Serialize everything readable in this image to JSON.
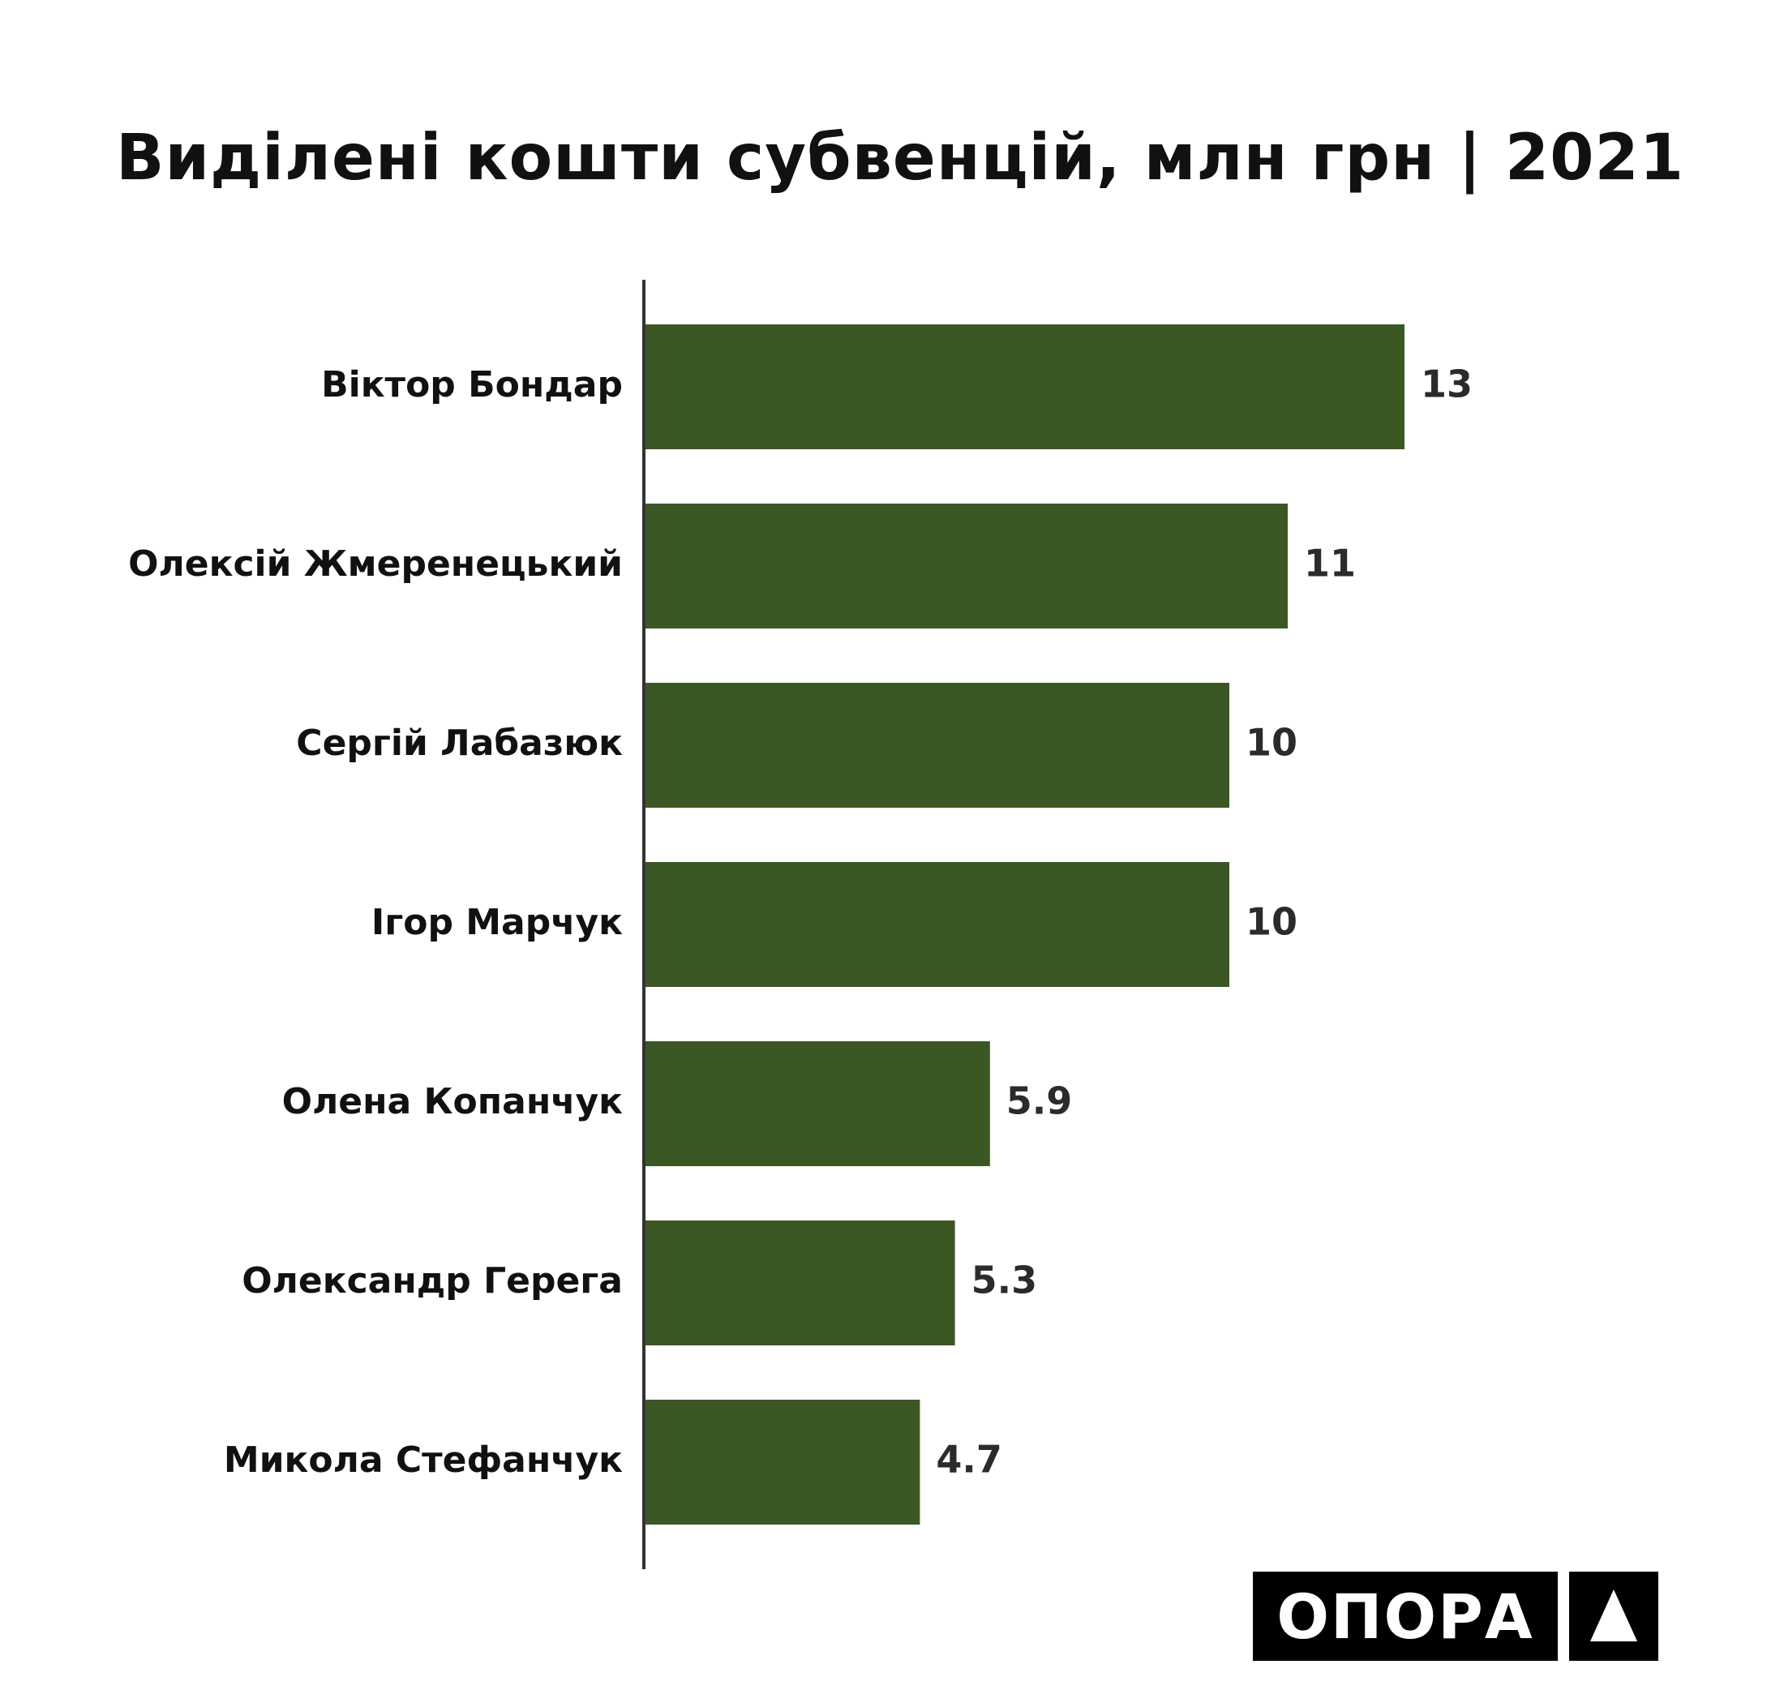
{
  "title": "Виділені кошти субвенцій, млн грн | 2021",
  "logo": {
    "text": "ОПОРА",
    "mark_icon": "triangle-icon"
  },
  "colors": {
    "bar": "#3B5723",
    "axis": "#333333",
    "text": "#111111",
    "value_text": "#2b2b2b"
  },
  "chart_data": {
    "type": "bar",
    "orientation": "horizontal",
    "title": "Виділені кошти субвенцій, млн грн | 2021",
    "xlabel": "",
    "ylabel": "",
    "categories": [
      "Віктор Бондар",
      "Олексій Жмеренецький",
      "Сергій Лабазюк",
      "Ігор Марчук",
      "Олена Копанчук",
      "Олександр Герега",
      "Микола Стефанчук"
    ],
    "values": [
      13,
      11,
      10,
      10,
      5.9,
      5.3,
      4.7
    ],
    "value_labels": [
      "13",
      "11",
      "10",
      "10",
      "5.9",
      "5.3",
      "4.7"
    ],
    "grid": false,
    "legend": "none"
  }
}
